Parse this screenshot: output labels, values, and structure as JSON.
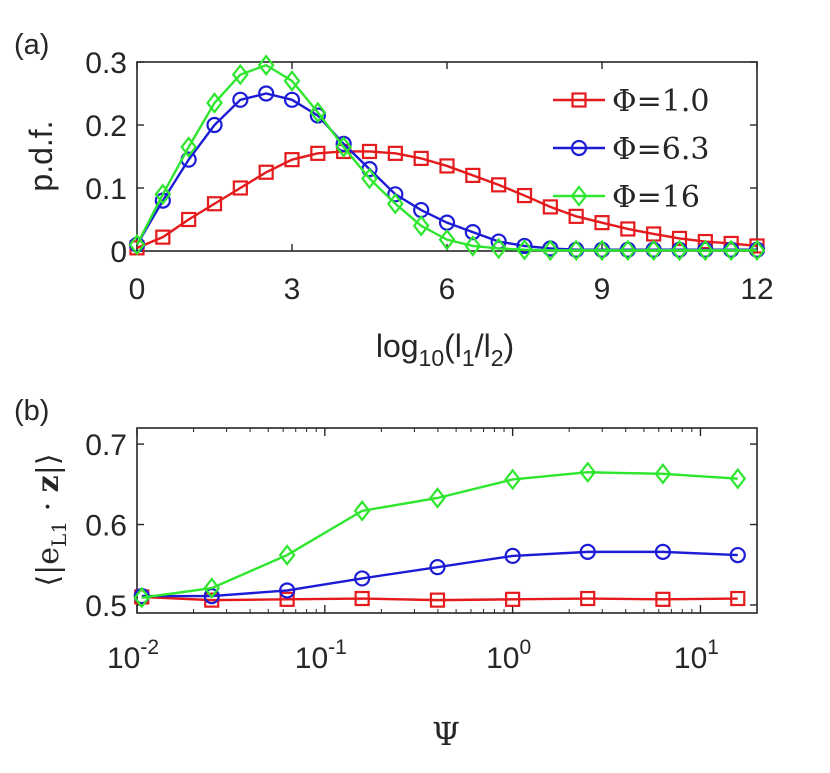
{
  "chart_data": [
    {
      "type": "line",
      "panel_label": "(a)",
      "xlabel_base": "log",
      "xlabel_sub1": "10",
      "xlabel_arg_open": "(l",
      "xlabel_sub2": "1",
      "xlabel_slash": "/l",
      "xlabel_sub3": "2",
      "xlabel_close": ")",
      "ylabel": "p.d.f.",
      "xlim": [
        0,
        12
      ],
      "ylim": [
        0,
        0.3
      ],
      "xticks": [
        0,
        3,
        6,
        9,
        12
      ],
      "xtick_labels": [
        "0",
        "3",
        "6",
        "9",
        "12"
      ],
      "yticks": [
        0,
        0.1,
        0.2,
        0.3
      ],
      "ytick_labels": [
        "0",
        "0.1",
        "0.2",
        "0.3"
      ],
      "legend_position": "top-right",
      "series": [
        {
          "name": "Φ=1.0",
          "color": "#e41a1c",
          "marker": "square",
          "x": [
            0,
            0.5,
            1,
            1.5,
            2,
            2.5,
            3,
            3.5,
            4,
            4.5,
            5,
            5.5,
            6,
            6.5,
            7,
            7.5,
            8,
            8.5,
            9,
            9.5,
            10,
            10.5,
            11,
            11.5,
            12
          ],
          "y": [
            0.005,
            0.022,
            0.05,
            0.075,
            0.1,
            0.125,
            0.145,
            0.155,
            0.158,
            0.158,
            0.155,
            0.147,
            0.135,
            0.12,
            0.105,
            0.088,
            0.07,
            0.055,
            0.045,
            0.035,
            0.027,
            0.02,
            0.015,
            0.012,
            0.008
          ]
        },
        {
          "name": "Φ=6.3",
          "color": "#1c1cd6",
          "marker": "circle",
          "x": [
            0,
            0.5,
            1,
            1.5,
            2,
            2.5,
            3,
            3.5,
            4,
            4.5,
            5,
            5.5,
            6,
            6.5,
            7,
            7.5,
            8,
            8.5,
            9,
            9.5,
            10,
            10.5,
            11,
            11.5,
            12
          ],
          "y": [
            0.01,
            0.08,
            0.145,
            0.2,
            0.24,
            0.25,
            0.24,
            0.215,
            0.17,
            0.13,
            0.09,
            0.065,
            0.045,
            0.03,
            0.015,
            0.008,
            0.004,
            0.002,
            0.002,
            0.002,
            0.002,
            0.002,
            0.002,
            0.002,
            0.002
          ]
        },
        {
          "name": "Φ=16",
          "color": "#2ee62e",
          "marker": "diamond",
          "x": [
            0,
            0.5,
            1,
            1.5,
            2,
            2.5,
            3,
            3.5,
            4,
            4.5,
            5,
            5.5,
            6,
            6.5,
            7,
            7.5,
            8,
            8.5,
            9,
            9.5,
            10,
            10.5,
            11,
            11.5,
            12
          ],
          "y": [
            0.01,
            0.09,
            0.165,
            0.235,
            0.28,
            0.295,
            0.27,
            0.22,
            0.165,
            0.115,
            0.075,
            0.04,
            0.018,
            0.008,
            0.004,
            0.002,
            0.001,
            0.001,
            0.001,
            0.001,
            0.001,
            0.001,
            0.001,
            0.001,
            0.001
          ]
        }
      ]
    },
    {
      "type": "line",
      "panel_label": "(b)",
      "xlabel": "Ψ",
      "xscale": "log",
      "ylabel_open": "⟨|e",
      "ylabel_sub": "L1",
      "ylabel_mid": " · ",
      "ylabel_bold": "z",
      "ylabel_close": "|⟩",
      "xlim": [
        0.01,
        20
      ],
      "ylim": [
        0.49,
        0.72
      ],
      "xticks": [
        0.01,
        0.1,
        1,
        10
      ],
      "xtick_bases": [
        "10",
        "10",
        "10",
        "10"
      ],
      "xtick_exps": [
        "-2",
        "-1",
        "0",
        "1"
      ],
      "yticks": [
        0.5,
        0.6,
        0.7
      ],
      "ytick_labels": [
        "0.5",
        "0.6",
        "0.7"
      ],
      "series": [
        {
          "name": "Φ=1.0",
          "color": "#e41a1c",
          "marker": "square",
          "x": [
            0.0106,
            0.025,
            0.063,
            0.158,
            0.398,
            1.0,
            2.51,
            6.31,
            15.8
          ],
          "y": [
            0.51,
            0.506,
            0.507,
            0.508,
            0.506,
            0.507,
            0.508,
            0.507,
            0.508
          ]
        },
        {
          "name": "Φ=6.3",
          "color": "#1c1cd6",
          "marker": "circle",
          "x": [
            0.0106,
            0.025,
            0.063,
            0.158,
            0.398,
            1.0,
            2.51,
            6.31,
            15.8
          ],
          "y": [
            0.511,
            0.511,
            0.518,
            0.533,
            0.547,
            0.561,
            0.566,
            0.566,
            0.562
          ]
        },
        {
          "name": "Φ=16",
          "color": "#2ee62e",
          "marker": "diamond",
          "x": [
            0.0106,
            0.025,
            0.063,
            0.158,
            0.398,
            1.0,
            2.51,
            6.31,
            15.8
          ],
          "y": [
            0.509,
            0.521,
            0.562,
            0.617,
            0.633,
            0.656,
            0.665,
            0.663,
            0.657
          ]
        }
      ]
    }
  ]
}
